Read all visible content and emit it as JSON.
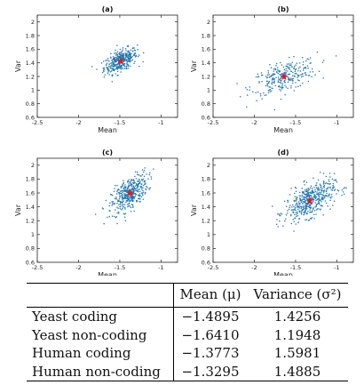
{
  "chart_data": [
    {
      "type": "scatter",
      "title": "(a)",
      "xlabel": "Mean",
      "ylabel": "Var",
      "xlim": [
        -2.5,
        -0.8
      ],
      "ylim": [
        0.6,
        2.1
      ],
      "xticks": [
        -2.5,
        -2,
        -1.5,
        -1
      ],
      "yticks": [
        0.6,
        0.8,
        1,
        1.2,
        1.4,
        1.6,
        1.8,
        2
      ],
      "series": [
        {
          "cloud": {
            "n": 380,
            "center": [
              -1.49,
              1.43
            ],
            "sd": [
              0.1,
              0.09
            ],
            "corr": 0.55
          }
        },
        {
          "marker": "*",
          "points": [
            {
              "x": -1.4895,
              "y": 1.4256
            }
          ]
        }
      ],
      "colors": {
        "points": "#1f77b4",
        "center": "#e31a1c"
      }
    },
    {
      "type": "scatter",
      "title": "(b)",
      "xlabel": "Mean",
      "ylabel": "Var",
      "xlim": [
        -2.5,
        -0.8
      ],
      "ylim": [
        0.6,
        2.1
      ],
      "xticks": [
        -2.5,
        -2,
        -1.5,
        -1
      ],
      "yticks": [
        0.6,
        0.8,
        1,
        1.2,
        1.4,
        1.6,
        1.8,
        2
      ],
      "series": [
        {
          "cloud": {
            "n": 280,
            "center": [
              -1.64,
              1.19
            ],
            "sd": [
              0.2,
              0.13
            ],
            "corr": 0.55
          }
        },
        {
          "marker": "*",
          "points": [
            {
              "x": -1.641,
              "y": 1.1948
            }
          ]
        }
      ],
      "colors": {
        "points": "#1f77b4",
        "center": "#e31a1c"
      }
    },
    {
      "type": "scatter",
      "title": "(c)",
      "xlabel": "Mean",
      "ylabel": "Var",
      "xlim": [
        -2.5,
        -0.8
      ],
      "ylim": [
        0.6,
        2.1
      ],
      "xticks": [
        -2.5,
        -2,
        -1.5,
        -1
      ],
      "yticks": [
        0.6,
        0.8,
        1,
        1.2,
        1.4,
        1.6,
        1.8,
        2
      ],
      "series": [
        {
          "cloud": {
            "n": 420,
            "center": [
              -1.38,
              1.59
            ],
            "sd": [
              0.11,
              0.14
            ],
            "corr": 0.6
          }
        },
        {
          "marker": "*",
          "points": [
            {
              "x": -1.3773,
              "y": 1.5981
            }
          ]
        }
      ],
      "colors": {
        "points": "#1f77b4",
        "center": "#e31a1c"
      }
    },
    {
      "type": "scatter",
      "title": "(d)",
      "xlabel": "Mean",
      "ylabel": "Var",
      "xlim": [
        -2.5,
        -0.8
      ],
      "ylim": [
        0.6,
        2.1
      ],
      "xticks": [
        -2.5,
        -2,
        -1.5,
        -1
      ],
      "yticks": [
        0.6,
        0.8,
        1,
        1.2,
        1.4,
        1.6,
        1.8,
        2
      ],
      "series": [
        {
          "cloud": {
            "n": 480,
            "center": [
              -1.33,
              1.49
            ],
            "sd": [
              0.15,
              0.14
            ],
            "corr": 0.55
          }
        },
        {
          "marker": "*",
          "points": [
            {
              "x": -1.3295,
              "y": 1.4885
            }
          ]
        }
      ],
      "colors": {
        "points": "#1f77b4",
        "center": "#e31a1c"
      }
    }
  ],
  "table": {
    "headers": [
      "",
      "Mean (μ)",
      "Variance (σ²)"
    ],
    "rows": [
      {
        "label": "Yeast coding",
        "mean": "−1.4895",
        "variance": "1.4256"
      },
      {
        "label": "Yeast non-coding",
        "mean": "−1.6410",
        "variance": "1.1948"
      },
      {
        "label": "Human coding",
        "mean": "−1.3773",
        "variance": "1.5981"
      },
      {
        "label": "Human non-coding",
        "mean": "−1.3295",
        "variance": "1.4885"
      }
    ]
  }
}
